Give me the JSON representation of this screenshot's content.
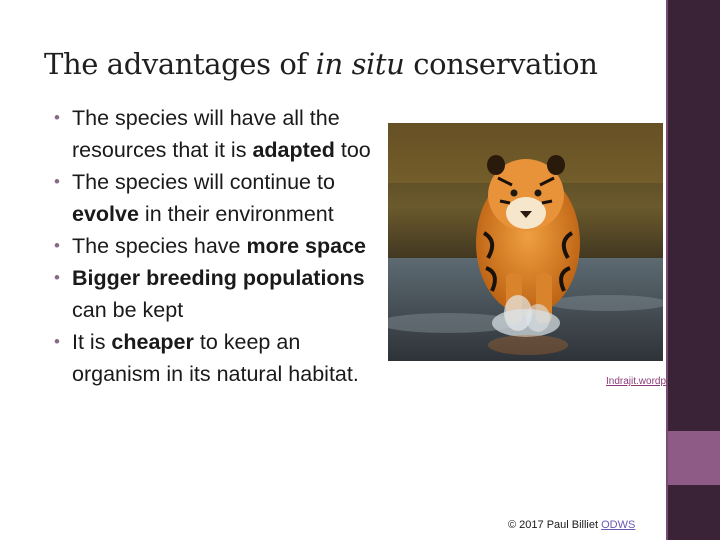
{
  "slide": {
    "title_before": "The advantages of ",
    "title_italic": "in situ",
    "title_after": " conservation",
    "bullets": [
      {
        "parts": [
          {
            "text": "The species will have all the resources that it is ",
            "bold": false
          },
          {
            "text": "adapted",
            "bold": true
          },
          {
            "text": " too",
            "bold": false
          }
        ]
      },
      {
        "parts": [
          {
            "text": "The species will continue to ",
            "bold": false
          },
          {
            "text": "evolve",
            "bold": true
          },
          {
            "text": " in their environment",
            "bold": false
          }
        ]
      },
      {
        "parts": [
          {
            "text": "The species have ",
            "bold": false
          },
          {
            "text": "more space",
            "bold": true
          }
        ]
      },
      {
        "parts": [
          {
            "text": "Bigger breeding populations",
            "bold": true
          },
          {
            "text": " can be kept",
            "bold": false
          }
        ]
      },
      {
        "parts": [
          {
            "text": "It is ",
            "bold": false
          },
          {
            "text": "cheaper",
            "bold": true
          },
          {
            "text": " to keep an organism in its natural habitat.",
            "bold": false
          }
        ]
      }
    ],
    "bullet_glyph": "•",
    "image_credit": "Indrajit.wordpress",
    "copyright_text": "© 2017 Paul Billiet ",
    "copyright_link": "ODWS",
    "colors": {
      "sidebar_dark": "#3b2337",
      "sidebar_accent": "#8e5a86",
      "bullet": "#8a6a85",
      "link": "#8a3b7a"
    }
  }
}
